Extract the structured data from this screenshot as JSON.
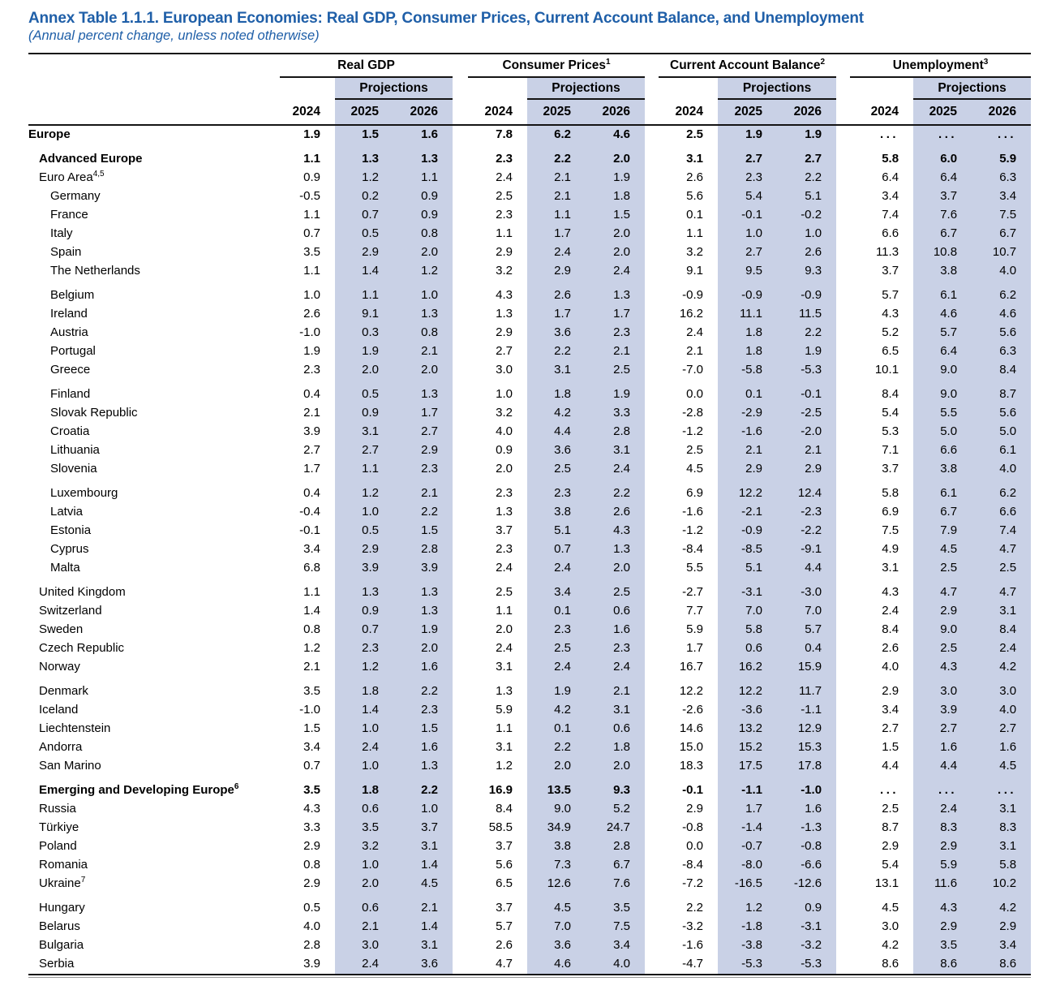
{
  "title": "Annex Table 1.1.1. European Economies: Real GDP, Consumer Prices, Current Account Balance, and Unemployment",
  "subtitle": "(Annual percent change, unless noted otherwise)",
  "colors": {
    "title_blue": "#1f5fa8",
    "projection_shade": "#c9d1e6"
  },
  "table": {
    "groups": [
      {
        "label": "Real GDP",
        "sup": ""
      },
      {
        "label": "Consumer Prices",
        "sup": "1"
      },
      {
        "label": "Current Account Balance",
        "sup": "2"
      },
      {
        "label": "Unemployment",
        "sup": "3"
      }
    ],
    "projections_label": "Projections",
    "years": [
      "2024",
      "2025",
      "2026"
    ],
    "rows": [
      {
        "label": "Europe",
        "sup": "",
        "indent": 0,
        "bold": true,
        "gap": false,
        "values": [
          "1.9",
          "1.5",
          "1.6",
          "7.8",
          "6.2",
          "4.6",
          "2.5",
          "1.9",
          "1.9",
          "...",
          "...",
          "..."
        ]
      },
      {
        "label": "Advanced Europe",
        "sup": "",
        "indent": 1,
        "bold": true,
        "gap": true,
        "values": [
          "1.1",
          "1.3",
          "1.3",
          "2.3",
          "2.2",
          "2.0",
          "3.1",
          "2.7",
          "2.7",
          "5.8",
          "6.0",
          "5.9"
        ]
      },
      {
        "label": "Euro Area",
        "sup": "4,5",
        "indent": 1,
        "bold": false,
        "gap": false,
        "values": [
          "0.9",
          "1.2",
          "1.1",
          "2.4",
          "2.1",
          "1.9",
          "2.6",
          "2.3",
          "2.2",
          "6.4",
          "6.4",
          "6.3"
        ]
      },
      {
        "label": "Germany",
        "sup": "",
        "indent": 2,
        "bold": false,
        "gap": false,
        "values": [
          "-0.5",
          "0.2",
          "0.9",
          "2.5",
          "2.1",
          "1.8",
          "5.6",
          "5.4",
          "5.1",
          "3.4",
          "3.7",
          "3.4"
        ]
      },
      {
        "label": "France",
        "sup": "",
        "indent": 2,
        "bold": false,
        "gap": false,
        "values": [
          "1.1",
          "0.7",
          "0.9",
          "2.3",
          "1.1",
          "1.5",
          "0.1",
          "-0.1",
          "-0.2",
          "7.4",
          "7.6",
          "7.5"
        ]
      },
      {
        "label": "Italy",
        "sup": "",
        "indent": 2,
        "bold": false,
        "gap": false,
        "values": [
          "0.7",
          "0.5",
          "0.8",
          "1.1",
          "1.7",
          "2.0",
          "1.1",
          "1.0",
          "1.0",
          "6.6",
          "6.7",
          "6.7"
        ]
      },
      {
        "label": "Spain",
        "sup": "",
        "indent": 2,
        "bold": false,
        "gap": false,
        "values": [
          "3.5",
          "2.9",
          "2.0",
          "2.9",
          "2.4",
          "2.0",
          "3.2",
          "2.7",
          "2.6",
          "11.3",
          "10.8",
          "10.7"
        ]
      },
      {
        "label": "The Netherlands",
        "sup": "",
        "indent": 2,
        "bold": false,
        "gap": false,
        "values": [
          "1.1",
          "1.4",
          "1.2",
          "3.2",
          "2.9",
          "2.4",
          "9.1",
          "9.5",
          "9.3",
          "3.7",
          "3.8",
          "4.0"
        ]
      },
      {
        "label": "Belgium",
        "sup": "",
        "indent": 2,
        "bold": false,
        "gap": true,
        "values": [
          "1.0",
          "1.1",
          "1.0",
          "4.3",
          "2.6",
          "1.3",
          "-0.9",
          "-0.9",
          "-0.9",
          "5.7",
          "6.1",
          "6.2"
        ]
      },
      {
        "label": "Ireland",
        "sup": "",
        "indent": 2,
        "bold": false,
        "gap": false,
        "values": [
          "2.6",
          "9.1",
          "1.3",
          "1.3",
          "1.7",
          "1.7",
          "16.2",
          "11.1",
          "11.5",
          "4.3",
          "4.6",
          "4.6"
        ]
      },
      {
        "label": "Austria",
        "sup": "",
        "indent": 2,
        "bold": false,
        "gap": false,
        "values": [
          "-1.0",
          "0.3",
          "0.8",
          "2.9",
          "3.6",
          "2.3",
          "2.4",
          "1.8",
          "2.2",
          "5.2",
          "5.7",
          "5.6"
        ]
      },
      {
        "label": "Portugal",
        "sup": "",
        "indent": 2,
        "bold": false,
        "gap": false,
        "values": [
          "1.9",
          "1.9",
          "2.1",
          "2.7",
          "2.2",
          "2.1",
          "2.1",
          "1.8",
          "1.9",
          "6.5",
          "6.4",
          "6.3"
        ]
      },
      {
        "label": "Greece",
        "sup": "",
        "indent": 2,
        "bold": false,
        "gap": false,
        "values": [
          "2.3",
          "2.0",
          "2.0",
          "3.0",
          "3.1",
          "2.5",
          "-7.0",
          "-5.8",
          "-5.3",
          "10.1",
          "9.0",
          "8.4"
        ]
      },
      {
        "label": "Finland",
        "sup": "",
        "indent": 2,
        "bold": false,
        "gap": true,
        "values": [
          "0.4",
          "0.5",
          "1.3",
          "1.0",
          "1.8",
          "1.9",
          "0.0",
          "0.1",
          "-0.1",
          "8.4",
          "9.0",
          "8.7"
        ]
      },
      {
        "label": "Slovak Republic",
        "sup": "",
        "indent": 2,
        "bold": false,
        "gap": false,
        "values": [
          "2.1",
          "0.9",
          "1.7",
          "3.2",
          "4.2",
          "3.3",
          "-2.8",
          "-2.9",
          "-2.5",
          "5.4",
          "5.5",
          "5.6"
        ]
      },
      {
        "label": "Croatia",
        "sup": "",
        "indent": 2,
        "bold": false,
        "gap": false,
        "values": [
          "3.9",
          "3.1",
          "2.7",
          "4.0",
          "4.4",
          "2.8",
          "-1.2",
          "-1.6",
          "-2.0",
          "5.3",
          "5.0",
          "5.0"
        ]
      },
      {
        "label": "Lithuania",
        "sup": "",
        "indent": 2,
        "bold": false,
        "gap": false,
        "values": [
          "2.7",
          "2.7",
          "2.9",
          "0.9",
          "3.6",
          "3.1",
          "2.5",
          "2.1",
          "2.1",
          "7.1",
          "6.6",
          "6.1"
        ]
      },
      {
        "label": "Slovenia",
        "sup": "",
        "indent": 2,
        "bold": false,
        "gap": false,
        "values": [
          "1.7",
          "1.1",
          "2.3",
          "2.0",
          "2.5",
          "2.4",
          "4.5",
          "2.9",
          "2.9",
          "3.7",
          "3.8",
          "4.0"
        ]
      },
      {
        "label": "Luxembourg",
        "sup": "",
        "indent": 2,
        "bold": false,
        "gap": true,
        "values": [
          "0.4",
          "1.2",
          "2.1",
          "2.3",
          "2.3",
          "2.2",
          "6.9",
          "12.2",
          "12.4",
          "5.8",
          "6.1",
          "6.2"
        ]
      },
      {
        "label": "Latvia",
        "sup": "",
        "indent": 2,
        "bold": false,
        "gap": false,
        "values": [
          "-0.4",
          "1.0",
          "2.2",
          "1.3",
          "3.8",
          "2.6",
          "-1.6",
          "-2.1",
          "-2.3",
          "6.9",
          "6.7",
          "6.6"
        ]
      },
      {
        "label": "Estonia",
        "sup": "",
        "indent": 2,
        "bold": false,
        "gap": false,
        "values": [
          "-0.1",
          "0.5",
          "1.5",
          "3.7",
          "5.1",
          "4.3",
          "-1.2",
          "-0.9",
          "-2.2",
          "7.5",
          "7.9",
          "7.4"
        ]
      },
      {
        "label": "Cyprus",
        "sup": "",
        "indent": 2,
        "bold": false,
        "gap": false,
        "values": [
          "3.4",
          "2.9",
          "2.8",
          "2.3",
          "0.7",
          "1.3",
          "-8.4",
          "-8.5",
          "-9.1",
          "4.9",
          "4.5",
          "4.7"
        ]
      },
      {
        "label": "Malta",
        "sup": "",
        "indent": 2,
        "bold": false,
        "gap": false,
        "values": [
          "6.8",
          "3.9",
          "3.9",
          "2.4",
          "2.4",
          "2.0",
          "5.5",
          "5.1",
          "4.4",
          "3.1",
          "2.5",
          "2.5"
        ]
      },
      {
        "label": "United Kingdom",
        "sup": "",
        "indent": 1,
        "bold": false,
        "gap": true,
        "values": [
          "1.1",
          "1.3",
          "1.3",
          "2.5",
          "3.4",
          "2.5",
          "-2.7",
          "-3.1",
          "-3.0",
          "4.3",
          "4.7",
          "4.7"
        ]
      },
      {
        "label": "Switzerland",
        "sup": "",
        "indent": 1,
        "bold": false,
        "gap": false,
        "values": [
          "1.4",
          "0.9",
          "1.3",
          "1.1",
          "0.1",
          "0.6",
          "7.7",
          "7.0",
          "7.0",
          "2.4",
          "2.9",
          "3.1"
        ]
      },
      {
        "label": "Sweden",
        "sup": "",
        "indent": 1,
        "bold": false,
        "gap": false,
        "values": [
          "0.8",
          "0.7",
          "1.9",
          "2.0",
          "2.3",
          "1.6",
          "5.9",
          "5.8",
          "5.7",
          "8.4",
          "9.0",
          "8.4"
        ]
      },
      {
        "label": "Czech Republic",
        "sup": "",
        "indent": 1,
        "bold": false,
        "gap": false,
        "values": [
          "1.2",
          "2.3",
          "2.0",
          "2.4",
          "2.5",
          "2.3",
          "1.7",
          "0.6",
          "0.4",
          "2.6",
          "2.5",
          "2.4"
        ]
      },
      {
        "label": "Norway",
        "sup": "",
        "indent": 1,
        "bold": false,
        "gap": false,
        "values": [
          "2.1",
          "1.2",
          "1.6",
          "3.1",
          "2.4",
          "2.4",
          "16.7",
          "16.2",
          "15.9",
          "4.0",
          "4.3",
          "4.2"
        ]
      },
      {
        "label": "Denmark",
        "sup": "",
        "indent": 1,
        "bold": false,
        "gap": true,
        "values": [
          "3.5",
          "1.8",
          "2.2",
          "1.3",
          "1.9",
          "2.1",
          "12.2",
          "12.2",
          "11.7",
          "2.9",
          "3.0",
          "3.0"
        ]
      },
      {
        "label": "Iceland",
        "sup": "",
        "indent": 1,
        "bold": false,
        "gap": false,
        "values": [
          "-1.0",
          "1.4",
          "2.3",
          "5.9",
          "4.2",
          "3.1",
          "-2.6",
          "-3.6",
          "-1.1",
          "3.4",
          "3.9",
          "4.0"
        ]
      },
      {
        "label": "Liechtenstein",
        "sup": "",
        "indent": 1,
        "bold": false,
        "gap": false,
        "values": [
          "1.5",
          "1.0",
          "1.5",
          "1.1",
          "0.1",
          "0.6",
          "14.6",
          "13.2",
          "12.9",
          "2.7",
          "2.7",
          "2.7"
        ]
      },
      {
        "label": "Andorra",
        "sup": "",
        "indent": 1,
        "bold": false,
        "gap": false,
        "values": [
          "3.4",
          "2.4",
          "1.6",
          "3.1",
          "2.2",
          "1.8",
          "15.0",
          "15.2",
          "15.3",
          "1.5",
          "1.6",
          "1.6"
        ]
      },
      {
        "label": "San Marino",
        "sup": "",
        "indent": 1,
        "bold": false,
        "gap": false,
        "values": [
          "0.7",
          "1.0",
          "1.3",
          "1.2",
          "2.0",
          "2.0",
          "18.3",
          "17.5",
          "17.8",
          "4.4",
          "4.4",
          "4.5"
        ]
      },
      {
        "label": "Emerging and Developing Europe",
        "sup": "6",
        "indent": 1,
        "bold": true,
        "gap": true,
        "values": [
          "3.5",
          "1.8",
          "2.2",
          "16.9",
          "13.5",
          "9.3",
          "-0.1",
          "-1.1",
          "-1.0",
          "...",
          "...",
          "..."
        ]
      },
      {
        "label": "Russia",
        "sup": "",
        "indent": 1,
        "bold": false,
        "gap": false,
        "values": [
          "4.3",
          "0.6",
          "1.0",
          "8.4",
          "9.0",
          "5.2",
          "2.9",
          "1.7",
          "1.6",
          "2.5",
          "2.4",
          "3.1"
        ]
      },
      {
        "label": "Türkiye",
        "sup": "",
        "indent": 1,
        "bold": false,
        "gap": false,
        "values": [
          "3.3",
          "3.5",
          "3.7",
          "58.5",
          "34.9",
          "24.7",
          "-0.8",
          "-1.4",
          "-1.3",
          "8.7",
          "8.3",
          "8.3"
        ]
      },
      {
        "label": "Poland",
        "sup": "",
        "indent": 1,
        "bold": false,
        "gap": false,
        "values": [
          "2.9",
          "3.2",
          "3.1",
          "3.7",
          "3.8",
          "2.8",
          "0.0",
          "-0.7",
          "-0.8",
          "2.9",
          "2.9",
          "3.1"
        ]
      },
      {
        "label": "Romania",
        "sup": "",
        "indent": 1,
        "bold": false,
        "gap": false,
        "values": [
          "0.8",
          "1.0",
          "1.4",
          "5.6",
          "7.3",
          "6.7",
          "-8.4",
          "-8.0",
          "-6.6",
          "5.4",
          "5.9",
          "5.8"
        ]
      },
      {
        "label": "Ukraine",
        "sup": "7",
        "indent": 1,
        "bold": false,
        "gap": false,
        "values": [
          "2.9",
          "2.0",
          "4.5",
          "6.5",
          "12.6",
          "7.6",
          "-7.2",
          "-16.5",
          "-12.6",
          "13.1",
          "11.6",
          "10.2"
        ]
      },
      {
        "label": "Hungary",
        "sup": "",
        "indent": 1,
        "bold": false,
        "gap": true,
        "values": [
          "0.5",
          "0.6",
          "2.1",
          "3.7",
          "4.5",
          "3.5",
          "2.2",
          "1.2",
          "0.9",
          "4.5",
          "4.3",
          "4.2"
        ]
      },
      {
        "label": "Belarus",
        "sup": "",
        "indent": 1,
        "bold": false,
        "gap": false,
        "values": [
          "4.0",
          "2.1",
          "1.4",
          "5.7",
          "7.0",
          "7.5",
          "-3.2",
          "-1.8",
          "-3.1",
          "3.0",
          "2.9",
          "2.9"
        ]
      },
      {
        "label": "Bulgaria",
        "sup": "",
        "indent": 1,
        "bold": false,
        "gap": false,
        "values": [
          "2.8",
          "3.0",
          "3.1",
          "2.6",
          "3.6",
          "3.4",
          "-1.6",
          "-3.8",
          "-3.2",
          "4.2",
          "3.5",
          "3.4"
        ]
      },
      {
        "label": "Serbia",
        "sup": "",
        "indent": 1,
        "bold": false,
        "gap": false,
        "values": [
          "3.9",
          "2.4",
          "3.6",
          "4.7",
          "4.6",
          "4.0",
          "-4.7",
          "-5.3",
          "-5.3",
          "8.6",
          "8.6",
          "8.6"
        ]
      }
    ]
  }
}
